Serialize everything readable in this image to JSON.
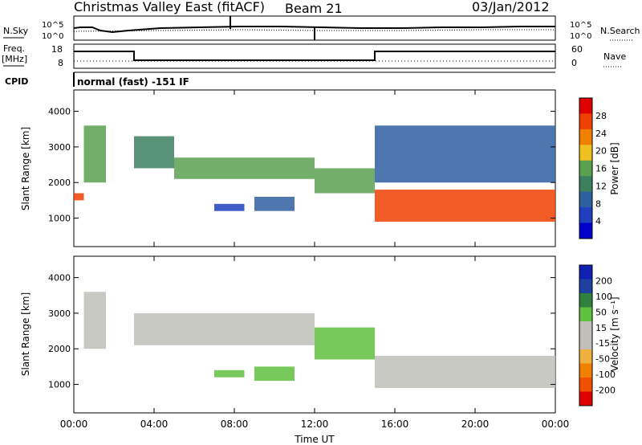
{
  "header": {
    "title": "Christmas Valley East (fitACF)",
    "beam": "Beam 21",
    "date": "03/Jan/2012"
  },
  "side_labels": {
    "nsky": "N.Sky",
    "nsearch": "N.Search",
    "freq": "Freq.",
    "freq_unit": "[MHz]",
    "nave": "Nave",
    "cpid": "CPID"
  },
  "noise_panel": {
    "tick_hi": "10^5",
    "tick_lo": "10^0",
    "right_tick_hi": "10^5",
    "right_tick_lo": "10^0"
  },
  "freq_panel": {
    "left_ticks": [
      "18",
      "8"
    ],
    "right_ticks": [
      "60",
      "0"
    ]
  },
  "cpid_text": "normal (fast) -151 IF",
  "x_axis": {
    "label": "Time UT",
    "ticks": [
      "00:00",
      "04:00",
      "08:00",
      "12:00",
      "16:00",
      "20:00",
      "00:00"
    ]
  },
  "colors": {
    "power_bar": [
      "#0000cc",
      "#1f3fbf",
      "#2e5fa0",
      "#3c8060",
      "#5aa050",
      "#f0c020",
      "#f08000",
      "#f04000",
      "#e00000"
    ],
    "velocity_bar": [
      "#e00000",
      "#f05000",
      "#f08000",
      "#f0b040",
      "#c0c0b8",
      "#c0c0b8",
      "#60c040",
      "#308040",
      "#2040a0",
      "#1020b0"
    ]
  },
  "chart_data": [
    {
      "type": "heatmap",
      "name": "power",
      "ylabel": "Slant Range [km]",
      "ylim": [
        200,
        4600
      ],
      "yticks": [
        "1000",
        "2000",
        "3000",
        "4000"
      ],
      "xlim": [
        0,
        24
      ],
      "colorbar": {
        "label": "Power [dB]",
        "ticks": [
          "4",
          "8",
          "12",
          "16",
          "20",
          "24",
          "28"
        ]
      },
      "regions": [
        {
          "t": [
            0.0,
            0.5
          ],
          "range": [
            1500,
            1700
          ],
          "value": 26
        },
        {
          "t": [
            0.5,
            1.6
          ],
          "range": [
            2000,
            3600
          ],
          "value": 14
        },
        {
          "t": [
            3.0,
            5.0
          ],
          "range": [
            2400,
            3300
          ],
          "value": 12
        },
        {
          "t": [
            5.0,
            12.0
          ],
          "range": [
            2100,
            2700
          ],
          "value": 14
        },
        {
          "t": [
            7.0,
            8.5
          ],
          "range": [
            1200,
            1400
          ],
          "value": 6
        },
        {
          "t": [
            9.0,
            11.0
          ],
          "range": [
            1200,
            1600
          ],
          "value": 7
        },
        {
          "t": [
            12.0,
            15.0
          ],
          "range": [
            1700,
            2400
          ],
          "value": 16
        },
        {
          "t": [
            15.0,
            24.0
          ],
          "range": [
            900,
            1800
          ],
          "value": 26
        },
        {
          "t": [
            15.0,
            24.0
          ],
          "range": [
            2000,
            3600
          ],
          "value": 10
        }
      ]
    },
    {
      "type": "heatmap",
      "name": "velocity",
      "ylabel": "Slant Range [km]",
      "ylim": [
        200,
        4600
      ],
      "yticks": [
        "1000",
        "2000",
        "3000",
        "4000"
      ],
      "xlim": [
        0,
        24
      ],
      "colorbar": {
        "label": "Velocity [m s⁻¹]",
        "ticks": [
          "200",
          "100",
          "50",
          "15",
          "-15",
          "-50",
          "-100",
          "-200"
        ]
      },
      "regions": [
        {
          "t": [
            0.5,
            1.6
          ],
          "range": [
            2000,
            3600
          ],
          "value": 0
        },
        {
          "t": [
            3.0,
            12.0
          ],
          "range": [
            2100,
            3000
          ],
          "value": 0
        },
        {
          "t": [
            7.0,
            8.5
          ],
          "range": [
            1200,
            1400
          ],
          "value": 60
        },
        {
          "t": [
            9.0,
            11.0
          ],
          "range": [
            1100,
            1500
          ],
          "value": 60
        },
        {
          "t": [
            12.0,
            15.0
          ],
          "range": [
            1700,
            2600
          ],
          "value": 40
        },
        {
          "t": [
            15.0,
            24.0
          ],
          "range": [
            900,
            1800
          ],
          "value": 0
        }
      ]
    }
  ]
}
